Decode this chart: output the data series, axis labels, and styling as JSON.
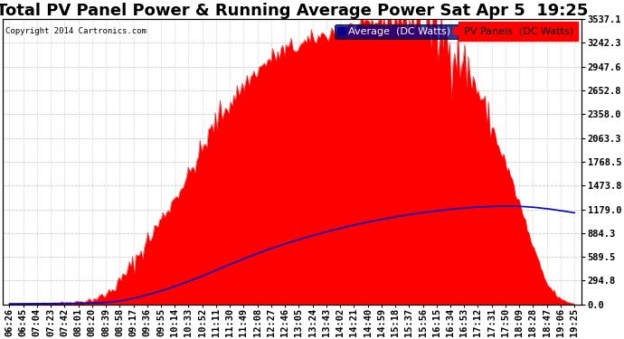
{
  "title": "Total PV Panel Power & Running Average Power Sat Apr 5  19:25",
  "copyright": "Copyright 2014 Cartronics.com",
  "legend_avg": "Average  (DC Watts)",
  "legend_pv": "PV Panels  (DC Watts)",
  "ylabel_right_ticks": [
    0.0,
    294.8,
    589.5,
    884.3,
    1179.0,
    1473.8,
    1768.5,
    2063.3,
    2358.0,
    2652.8,
    2947.6,
    3242.3,
    3537.1
  ],
  "bg_color": "#ffffff",
  "plot_bg_color": "#ffffff",
  "grid_color": "#cccccc",
  "pv_fill_color": "#ff0000",
  "avg_line_color": "#0000cc",
  "x_labels": [
    "06:26",
    "06:45",
    "07:04",
    "07:23",
    "07:42",
    "08:01",
    "08:20",
    "08:39",
    "08:58",
    "09:17",
    "09:36",
    "09:55",
    "10:14",
    "10:33",
    "10:52",
    "11:11",
    "11:30",
    "11:49",
    "12:08",
    "12:27",
    "12:46",
    "13:05",
    "13:24",
    "13:43",
    "14:02",
    "14:21",
    "14:40",
    "14:59",
    "15:18",
    "15:37",
    "15:56",
    "16:15",
    "16:34",
    "16:53",
    "17:12",
    "17:31",
    "17:50",
    "18:09",
    "18:28",
    "18:47",
    "19:06",
    "19:25"
  ],
  "pv_values": [
    8,
    12,
    15,
    18,
    22,
    35,
    60,
    120,
    280,
    520,
    780,
    1050,
    1320,
    1600,
    1920,
    2280,
    2500,
    2720,
    2900,
    3050,
    3150,
    3200,
    3280,
    3350,
    3400,
    3420,
    3480,
    3520,
    3537,
    3510,
    3490,
    3400,
    3250,
    2980,
    2650,
    2200,
    1750,
    1250,
    700,
    250,
    60,
    5
  ],
  "pv_noise": [
    0,
    0,
    5,
    8,
    15,
    20,
    30,
    50,
    80,
    100,
    120,
    100,
    80,
    100,
    120,
    150,
    120,
    100,
    80,
    100,
    120,
    100,
    80,
    100,
    120,
    100,
    80,
    100,
    150,
    200,
    300,
    400,
    350,
    300,
    200,
    150,
    100,
    80,
    50,
    30,
    20,
    5
  ],
  "avg_values": [
    8,
    9,
    10,
    11,
    12,
    14,
    17,
    24,
    42,
    75,
    118,
    168,
    224,
    286,
    352,
    425,
    497,
    566,
    632,
    694,
    751,
    804,
    854,
    901,
    944,
    984,
    1020,
    1053,
    1086,
    1113,
    1138,
    1160,
    1179,
    1195,
    1207,
    1215,
    1219,
    1216,
    1205,
    1187,
    1163,
    1136
  ],
  "ymax": 3537.1,
  "title_fontsize": 13,
  "tick_fontsize": 7.5,
  "legend_fontsize": 8,
  "n_points": 42
}
